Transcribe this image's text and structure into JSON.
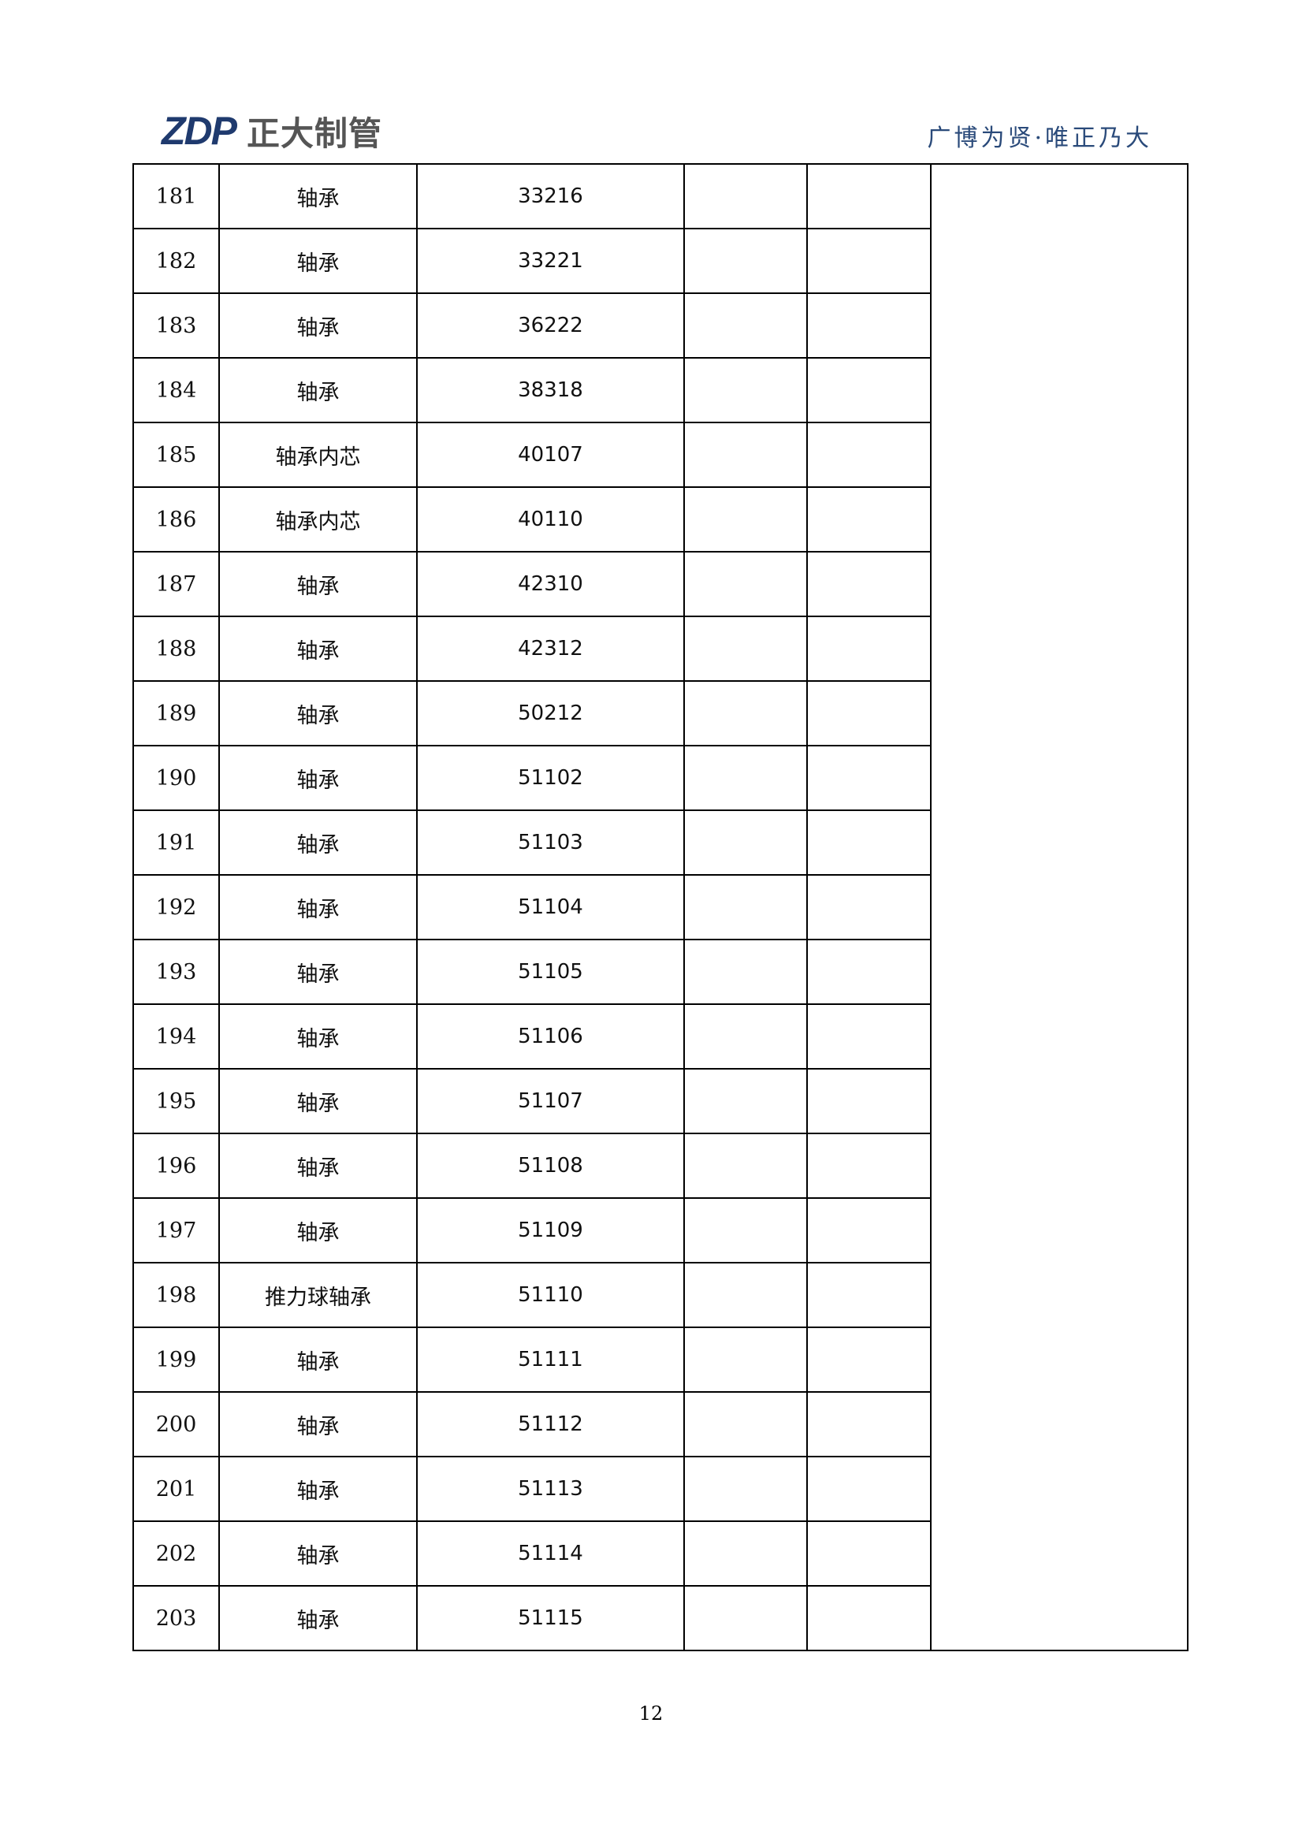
{
  "header": {
    "logo_mark": "ZDP",
    "logo_name": "正大制管",
    "slogan": "广博为贤·唯正乃大",
    "brand_color": "#1f3a6e"
  },
  "table": {
    "rows": [
      {
        "no": "181",
        "name": "轴承",
        "model": "33216"
      },
      {
        "no": "182",
        "name": "轴承",
        "model": "33221"
      },
      {
        "no": "183",
        "name": "轴承",
        "model": "36222"
      },
      {
        "no": "184",
        "name": "轴承",
        "model": "38318"
      },
      {
        "no": "185",
        "name": "轴承内芯",
        "model": "40107"
      },
      {
        "no": "186",
        "name": "轴承内芯",
        "model": "40110"
      },
      {
        "no": "187",
        "name": "轴承",
        "model": "42310"
      },
      {
        "no": "188",
        "name": "轴承",
        "model": "42312"
      },
      {
        "no": "189",
        "name": "轴承",
        "model": "50212"
      },
      {
        "no": "190",
        "name": "轴承",
        "model": "51102"
      },
      {
        "no": "191",
        "name": "轴承",
        "model": "51103"
      },
      {
        "no": "192",
        "name": "轴承",
        "model": "51104"
      },
      {
        "no": "193",
        "name": "轴承",
        "model": "51105"
      },
      {
        "no": "194",
        "name": "轴承",
        "model": "51106"
      },
      {
        "no": "195",
        "name": "轴承",
        "model": "51107"
      },
      {
        "no": "196",
        "name": "轴承",
        "model": "51108"
      },
      {
        "no": "197",
        "name": "轴承",
        "model": "51109"
      },
      {
        "no": "198",
        "name": "推力球轴承",
        "model": "51110"
      },
      {
        "no": "199",
        "name": "轴承",
        "model": "51111"
      },
      {
        "no": "200",
        "name": "轴承",
        "model": "51112"
      },
      {
        "no": "201",
        "name": "轴承",
        "model": "51113"
      },
      {
        "no": "202",
        "name": "轴承",
        "model": "51114"
      },
      {
        "no": "203",
        "name": "轴承",
        "model": "51115"
      }
    ]
  },
  "footer": {
    "page_number": "12"
  }
}
